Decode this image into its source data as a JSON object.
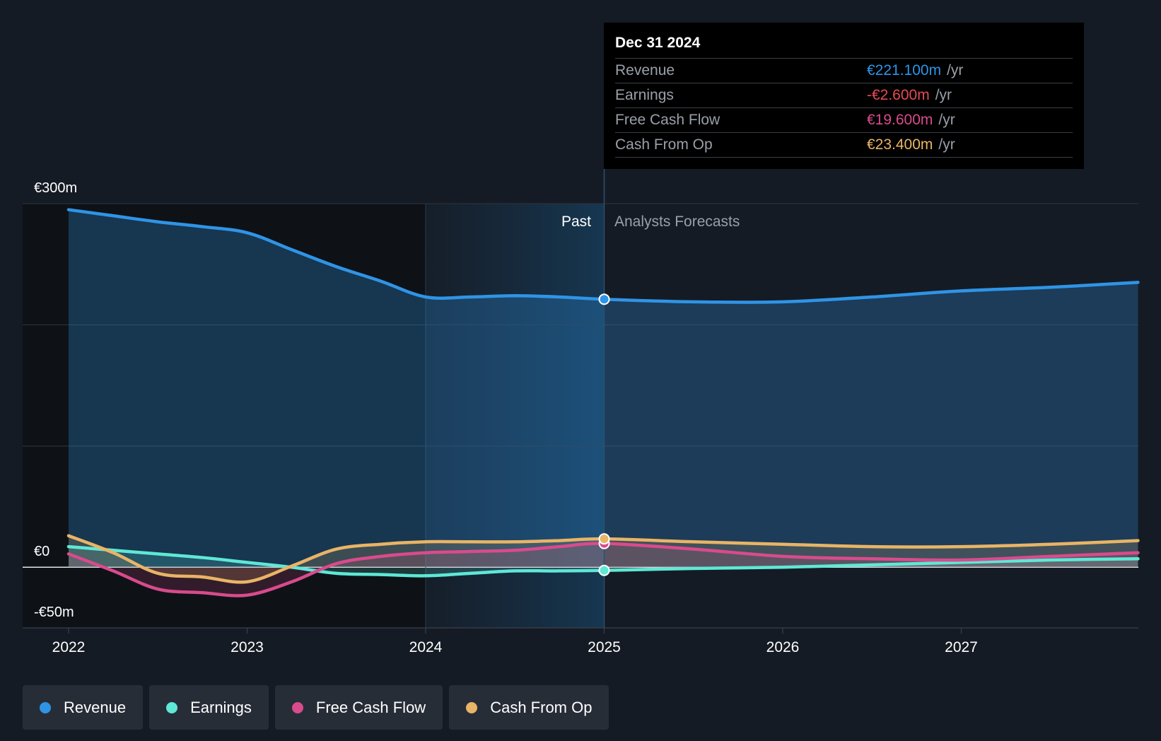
{
  "chart_data": {
    "type": "line",
    "title": "",
    "x_ticks": [
      "2022",
      "2023",
      "2024",
      "2025",
      "2026",
      "2027"
    ],
    "y_axis_labels": {
      "top": "€300m",
      "zero": "€0",
      "bottom": "-€50m"
    },
    "ylim": [
      -50,
      300
    ],
    "xlim": [
      2022.0,
      2027.99
    ],
    "past_label": "Past",
    "forecast_label": "Analysts Forecasts",
    "divider_x": 2025.0,
    "series": [
      {
        "name": "Revenue",
        "color": "#2f94e6",
        "points": [
          [
            2022.0,
            295
          ],
          [
            2022.25,
            290
          ],
          [
            2022.5,
            285
          ],
          [
            2022.75,
            281
          ],
          [
            2023.0,
            276
          ],
          [
            2023.25,
            262
          ],
          [
            2023.5,
            248
          ],
          [
            2023.75,
            236
          ],
          [
            2024.0,
            223
          ],
          [
            2024.25,
            223
          ],
          [
            2024.5,
            224
          ],
          [
            2024.75,
            223
          ],
          [
            2025.0,
            221.1
          ],
          [
            2025.5,
            219
          ],
          [
            2026.0,
            219
          ],
          [
            2026.5,
            223
          ],
          [
            2027.0,
            228
          ],
          [
            2027.5,
            231
          ],
          [
            2027.99,
            235
          ]
        ]
      },
      {
        "name": "Earnings",
        "color": "#5ee8d6",
        "points": [
          [
            2022.0,
            17
          ],
          [
            2022.25,
            14
          ],
          [
            2022.5,
            11
          ],
          [
            2022.75,
            8
          ],
          [
            2023.0,
            4
          ],
          [
            2023.25,
            0
          ],
          [
            2023.5,
            -5
          ],
          [
            2023.75,
            -6
          ],
          [
            2024.0,
            -7
          ],
          [
            2024.25,
            -5
          ],
          [
            2024.5,
            -3
          ],
          [
            2024.75,
            -3
          ],
          [
            2025.0,
            -2.6
          ],
          [
            2025.5,
            -1
          ],
          [
            2026.0,
            0
          ],
          [
            2026.5,
            2
          ],
          [
            2027.0,
            4
          ],
          [
            2027.5,
            6
          ],
          [
            2027.99,
            7
          ]
        ]
      },
      {
        "name": "Free Cash Flow",
        "color": "#d84b8c",
        "points": [
          [
            2022.0,
            11
          ],
          [
            2022.25,
            -3
          ],
          [
            2022.5,
            -18
          ],
          [
            2022.75,
            -21
          ],
          [
            2023.0,
            -23
          ],
          [
            2023.25,
            -12
          ],
          [
            2023.5,
            3
          ],
          [
            2023.75,
            9
          ],
          [
            2024.0,
            12
          ],
          [
            2024.25,
            13
          ],
          [
            2024.5,
            14
          ],
          [
            2024.75,
            17
          ],
          [
            2025.0,
            19.6
          ],
          [
            2025.5,
            15
          ],
          [
            2026.0,
            9
          ],
          [
            2026.5,
            7
          ],
          [
            2027.0,
            6
          ],
          [
            2027.5,
            9
          ],
          [
            2027.99,
            12
          ]
        ]
      },
      {
        "name": "Cash From Op",
        "color": "#e9b466",
        "points": [
          [
            2022.0,
            26
          ],
          [
            2022.25,
            12
          ],
          [
            2022.5,
            -5
          ],
          [
            2022.75,
            -8
          ],
          [
            2023.0,
            -12
          ],
          [
            2023.25,
            1
          ],
          [
            2023.5,
            15
          ],
          [
            2023.75,
            19
          ],
          [
            2024.0,
            21
          ],
          [
            2024.25,
            21
          ],
          [
            2024.5,
            21
          ],
          [
            2024.75,
            22
          ],
          [
            2025.0,
            23.4
          ],
          [
            2025.5,
            21
          ],
          [
            2026.0,
            19
          ],
          [
            2026.5,
            17
          ],
          [
            2027.0,
            17
          ],
          [
            2027.5,
            19
          ],
          [
            2027.99,
            22
          ]
        ]
      }
    ],
    "tooltip": {
      "date": "Dec 31 2024",
      "unit": "/yr",
      "rows": [
        {
          "label": "Revenue",
          "value": "€221.100m",
          "color": "#2f94e6"
        },
        {
          "label": "Earnings",
          "value": "-€2.600m",
          "color": "#e74a55"
        },
        {
          "label": "Free Cash Flow",
          "value": "€19.600m",
          "color": "#d84b8c"
        },
        {
          "label": "Cash From Op",
          "value": "€23.400m",
          "color": "#e9b466"
        }
      ]
    },
    "legend": [
      {
        "label": "Revenue",
        "color": "#2f94e6"
      },
      {
        "label": "Earnings",
        "color": "#5ee8d6"
      },
      {
        "label": "Free Cash Flow",
        "color": "#d84b8c"
      },
      {
        "label": "Cash From Op",
        "color": "#e9b466"
      }
    ]
  }
}
